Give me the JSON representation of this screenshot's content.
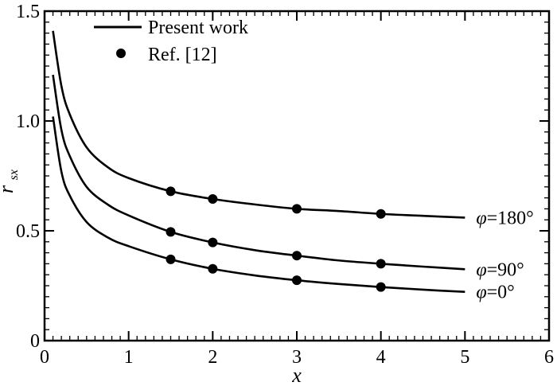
{
  "chart_data": {
    "type": "line",
    "xlabel": "x",
    "ylabel_main": "r",
    "ylabel_sub": "sx",
    "xlim": [
      0,
      6
    ],
    "ylim": [
      0,
      1.5
    ],
    "x_ticks": [
      0,
      1,
      2,
      3,
      4,
      5,
      6
    ],
    "x_tick_labels": [
      "0",
      "1",
      "2",
      "3",
      "4",
      "5",
      "6"
    ],
    "y_ticks": [
      0,
      0.5,
      1.0,
      1.5
    ],
    "y_tick_labels": [
      "0",
      "0.5",
      "1.0",
      "1.5"
    ],
    "legend": {
      "position": "top-left",
      "entries": [
        {
          "label": "Present work",
          "marker": "line"
        },
        {
          "label": "Ref. [12]",
          "marker": "dot"
        }
      ]
    },
    "series": [
      {
        "label_symbol": "φ",
        "label_value": "=180°",
        "x": [
          0.1,
          0.2,
          0.3,
          0.5,
          0.75,
          1.0,
          1.5,
          2.0,
          2.5,
          3.0,
          3.5,
          4.0,
          4.5,
          5.0
        ],
        "y": [
          1.41,
          1.16,
          1.03,
          0.88,
          0.79,
          0.74,
          0.68,
          0.645,
          0.62,
          0.6,
          0.59,
          0.577,
          0.568,
          0.56
        ],
        "ref_x": [
          1.5,
          2.0,
          3.0,
          4.0
        ],
        "ref_y": [
          0.68,
          0.645,
          0.6,
          0.577
        ]
      },
      {
        "label_symbol": "φ",
        "label_value": "=90°",
        "x": [
          0.1,
          0.2,
          0.3,
          0.5,
          0.75,
          1.0,
          1.5,
          2.0,
          2.5,
          3.0,
          3.5,
          4.0,
          4.5,
          5.0
        ],
        "y": [
          1.21,
          0.96,
          0.84,
          0.7,
          0.62,
          0.57,
          0.495,
          0.447,
          0.412,
          0.387,
          0.365,
          0.35,
          0.337,
          0.325
        ],
        "ref_x": [
          1.5,
          2.0,
          3.0,
          4.0
        ],
        "ref_y": [
          0.495,
          0.447,
          0.387,
          0.35
        ]
      },
      {
        "label_symbol": "φ",
        "label_value": "=0°",
        "x": [
          0.1,
          0.2,
          0.3,
          0.5,
          0.75,
          1.0,
          1.5,
          2.0,
          2.5,
          3.0,
          3.5,
          4.0,
          4.5,
          5.0
        ],
        "y": [
          1.02,
          0.77,
          0.66,
          0.54,
          0.47,
          0.43,
          0.37,
          0.327,
          0.297,
          0.275,
          0.258,
          0.244,
          0.232,
          0.222
        ],
        "ref_x": [
          1.5,
          2.0,
          3.0,
          4.0
        ],
        "ref_y": [
          0.37,
          0.327,
          0.275,
          0.244
        ]
      }
    ]
  }
}
